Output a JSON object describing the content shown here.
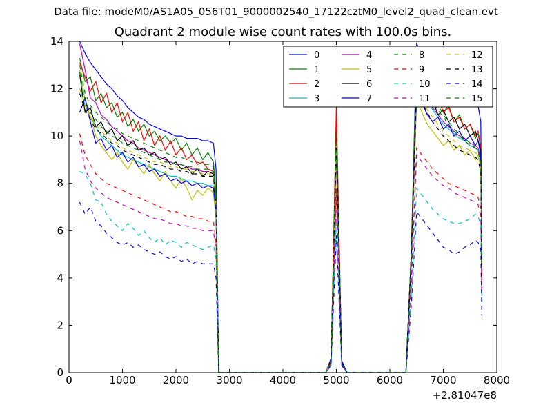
{
  "figure": {
    "suptitle": "Data file: modeM0/AS1A05_056T01_9000002540_17122cztM0_level2_quad_clean.evt"
  },
  "chart_data": {
    "type": "line",
    "title": "Quadrant 2 module wise count rates with 100.0s bins.",
    "xlabel": "",
    "ylabel": "",
    "xlim": [
      0,
      8000
    ],
    "ylim": [
      0,
      14
    ],
    "x_offset_label": "+2.81047e8",
    "xticks": [
      0,
      1000,
      2000,
      3000,
      4000,
      5000,
      6000,
      7000,
      8000
    ],
    "yticks": [
      0,
      2,
      4,
      6,
      8,
      10,
      12,
      14
    ],
    "legend_position": "top-right",
    "legend_columns": 4,
    "x": [
      200,
      300,
      400,
      500,
      600,
      700,
      800,
      900,
      1000,
      1100,
      1200,
      1300,
      1400,
      1500,
      1600,
      1700,
      1800,
      1900,
      2000,
      2100,
      2200,
      2300,
      2400,
      2500,
      2600,
      2700,
      2750,
      2800,
      4800,
      4900,
      5000,
      5100,
      5200,
      6300,
      6400,
      6500,
      6600,
      6700,
      6800,
      6900,
      7000,
      7100,
      7200,
      7300,
      7400,
      7500,
      7600,
      7650,
      7700,
      7720
    ],
    "series": [
      {
        "name": "0",
        "color": "#0000ff",
        "dashed": false,
        "values": [
          14.0,
          13.5,
          13.1,
          12.8,
          12.5,
          12.2,
          12.0,
          11.7,
          11.5,
          11.2,
          11.0,
          10.8,
          10.7,
          10.5,
          10.4,
          10.3,
          10.2,
          10.1,
          10.0,
          10.0,
          9.9,
          9.9,
          9.9,
          9.8,
          9.8,
          9.7,
          8.6,
          0,
          0,
          0.6,
          10.0,
          0.5,
          0,
          0,
          5.0,
          13.9,
          13.5,
          12.8,
          12.4,
          12.2,
          12.0,
          11.8,
          11.7,
          11.6,
          11.5,
          11.4,
          11.4,
          11.3,
          10.6,
          5.5
        ]
      },
      {
        "name": "1",
        "color": "#008000",
        "dashed": false,
        "values": [
          13.3,
          12.3,
          12.5,
          11.5,
          11.8,
          11.2,
          11.4,
          10.8,
          11.0,
          10.4,
          10.7,
          10.2,
          10.5,
          10.0,
          10.2,
          9.8,
          10.0,
          9.7,
          9.9,
          9.4,
          9.7,
          9.2,
          9.5,
          9.0,
          9.3,
          8.9,
          7.5,
          0,
          0,
          0.5,
          10.5,
          0.4,
          0,
          0,
          5.0,
          13.2,
          12.8,
          12.2,
          11.9,
          11.6,
          11.0,
          11.3,
          10.6,
          10.9,
          10.3,
          10.5,
          9.9,
          10.1,
          9.5,
          5.5
        ]
      },
      {
        "name": "2",
        "color": "#ff0000",
        "dashed": false,
        "values": [
          13.1,
          12.5,
          11.9,
          12.3,
          11.4,
          11.8,
          11.0,
          11.4,
          10.6,
          11.0,
          10.2,
          10.6,
          9.8,
          10.3,
          9.6,
          10.0,
          9.4,
          9.8,
          9.2,
          9.5,
          9.0,
          9.2,
          8.8,
          8.9,
          8.6,
          8.5,
          7.2,
          0,
          0,
          0.5,
          11.3,
          0.4,
          0,
          0,
          5.0,
          13.0,
          12.6,
          12.0,
          11.5,
          11.7,
          11.0,
          11.2,
          10.6,
          10.8,
          10.3,
          10.5,
          10.0,
          10.2,
          9.5,
          4.0
        ]
      },
      {
        "name": "3",
        "color": "#00bfbf",
        "dashed": false,
        "values": [
          12.0,
          11.3,
          10.8,
          10.4,
          10.0,
          9.8,
          9.6,
          9.4,
          9.2,
          9.1,
          9.0,
          8.9,
          8.8,
          8.7,
          8.6,
          8.5,
          8.4,
          8.3,
          8.3,
          8.2,
          8.1,
          8.1,
          8.0,
          8.0,
          7.9,
          7.9,
          6.8,
          0,
          0,
          0.4,
          9.2,
          0.4,
          0,
          0,
          4.5,
          12.5,
          12.0,
          11.5,
          11.1,
          10.8,
          10.5,
          10.3,
          10.1,
          9.9,
          9.8,
          9.6,
          9.5,
          9.4,
          8.8,
          4.5
        ]
      },
      {
        "name": "4",
        "color": "#bf00bf",
        "dashed": false,
        "values": [
          13.9,
          12.8,
          11.6,
          11.4,
          10.9,
          10.7,
          10.4,
          10.2,
          10.0,
          9.8,
          9.7,
          9.5,
          9.4,
          9.3,
          9.2,
          9.1,
          9.0,
          8.9,
          8.8,
          8.8,
          8.7,
          8.6,
          8.6,
          8.5,
          8.5,
          8.4,
          7.0,
          0,
          0,
          0.5,
          10.0,
          0.4,
          0,
          0,
          5.0,
          12.6,
          12.1,
          11.6,
          11.2,
          10.9,
          10.6,
          10.4,
          10.2,
          10.0,
          9.9,
          9.7,
          9.6,
          9.5,
          9.0,
          5.0
        ]
      },
      {
        "name": "5",
        "color": "#bfbf00",
        "dashed": false,
        "values": [
          12.8,
          11.5,
          10.8,
          10.0,
          9.6,
          9.3,
          9.0,
          9.3,
          8.9,
          8.6,
          9.0,
          8.7,
          8.4,
          8.8,
          8.4,
          8.1,
          8.5,
          8.1,
          7.8,
          8.2,
          7.8,
          7.3,
          7.7,
          7.5,
          7.8,
          7.6,
          6.5,
          0,
          0,
          0.4,
          8.8,
          0.3,
          0,
          0,
          4.5,
          11.5,
          11.0,
          10.5,
          10.2,
          9.9,
          9.6,
          9.8,
          9.4,
          9.6,
          9.2,
          9.4,
          9.0,
          9.2,
          8.6,
          4.5
        ]
      },
      {
        "name": "6",
        "color": "#000000",
        "dashed": false,
        "values": [
          12.6,
          11.0,
          11.2,
          10.4,
          10.6,
          10.1,
          10.3,
          9.8,
          10.0,
          9.6,
          9.8,
          9.4,
          9.5,
          9.2,
          9.3,
          9.0,
          9.1,
          8.8,
          8.9,
          8.6,
          8.7,
          8.4,
          8.6,
          8.3,
          8.5,
          8.4,
          7.0,
          0,
          0,
          0.5,
          10.2,
          0.4,
          0,
          0,
          5.0,
          12.2,
          11.8,
          11.3,
          11.5,
          10.9,
          11.1,
          10.6,
          10.8,
          10.3,
          10.5,
          10.0,
          10.2,
          9.8,
          9.4,
          5.0
        ]
      },
      {
        "name": "7",
        "color": "#0000ff",
        "dashed": false,
        "values": [
          11.0,
          11.6,
          10.6,
          9.7,
          9.9,
          9.4,
          9.6,
          9.1,
          9.3,
          8.9,
          9.1,
          8.7,
          8.8,
          8.5,
          8.6,
          8.3,
          8.4,
          8.1,
          8.2,
          8.0,
          8.1,
          7.9,
          8.0,
          7.8,
          7.9,
          7.8,
          6.8,
          0,
          0,
          0.4,
          9.5,
          0.4,
          0,
          0,
          4.8,
          11.8,
          11.4,
          10.9,
          10.6,
          10.8,
          10.3,
          10.5,
          10.0,
          10.2,
          9.8,
          10.0,
          9.6,
          9.8,
          9.2,
          4.8
        ]
      },
      {
        "name": "8",
        "color": "#008000",
        "dashed": true,
        "values": [
          13.0,
          11.8,
          11.3,
          11.0,
          10.8,
          10.6,
          10.4,
          10.3,
          10.1,
          10.0,
          9.9,
          9.8,
          9.7,
          9.6,
          9.5,
          9.4,
          9.3,
          9.2,
          9.1,
          9.1,
          9.0,
          8.9,
          8.9,
          8.8,
          8.8,
          8.7,
          7.3,
          0,
          0,
          0.5,
          10.3,
          0.4,
          0,
          0,
          5.0,
          13.3,
          12.7,
          12.1,
          11.6,
          11.3,
          10.9,
          10.6,
          10.3,
          10.1,
          9.9,
          9.7,
          9.5,
          9.4,
          8.8,
          4.8
        ]
      },
      {
        "name": "9",
        "color": "#ff0000",
        "dashed": true,
        "values": [
          10.1,
          9.2,
          8.8,
          8.4,
          8.2,
          8.0,
          7.9,
          7.8,
          7.7,
          7.6,
          7.5,
          7.4,
          7.3,
          7.2,
          7.1,
          7.0,
          6.9,
          6.8,
          6.8,
          6.7,
          6.6,
          6.6,
          6.5,
          6.5,
          6.4,
          6.4,
          5.5,
          0,
          0,
          0.4,
          7.8,
          0.3,
          0,
          0,
          3.8,
          9.5,
          9.2,
          8.9,
          8.6,
          8.4,
          8.2,
          8.0,
          7.9,
          7.8,
          7.7,
          7.6,
          7.5,
          7.4,
          6.9,
          3.5
        ]
      },
      {
        "name": "10",
        "color": "#00bfbf",
        "dashed": true,
        "values": [
          8.5,
          8.4,
          8.0,
          7.3,
          7.2,
          6.7,
          6.4,
          6.2,
          6.0,
          6.3,
          6.1,
          5.8,
          6.0,
          5.7,
          5.5,
          5.7,
          5.4,
          5.6,
          5.5,
          5.3,
          5.5,
          5.4,
          5.3,
          5.2,
          5.3,
          5.4,
          4.8,
          0,
          0,
          0.3,
          6.5,
          0.3,
          0,
          0,
          3.2,
          7.8,
          7.5,
          7.2,
          6.9,
          6.7,
          6.5,
          6.4,
          6.3,
          6.3,
          6.4,
          6.5,
          6.7,
          6.6,
          6.2,
          3.0
        ]
      },
      {
        "name": "11",
        "color": "#bf00bf",
        "dashed": true,
        "values": [
          9.8,
          8.6,
          8.1,
          7.8,
          7.6,
          7.4,
          7.3,
          7.2,
          7.1,
          7.0,
          6.9,
          6.8,
          6.7,
          6.6,
          6.5,
          6.5,
          6.4,
          6.3,
          6.3,
          6.2,
          6.2,
          6.1,
          6.1,
          6.0,
          6.0,
          6.0,
          5.2,
          0,
          0,
          0.4,
          7.5,
          0.3,
          0,
          0,
          3.7,
          9.2,
          8.9,
          8.6,
          8.3,
          8.1,
          7.9,
          7.8,
          7.6,
          7.5,
          7.4,
          7.3,
          7.2,
          7.1,
          6.6,
          3.4
        ]
      },
      {
        "name": "12",
        "color": "#bfbf00",
        "dashed": true,
        "values": [
          12.0,
          11.3,
          10.8,
          10.5,
          10.2,
          10.0,
          9.8,
          9.7,
          9.5,
          9.4,
          9.3,
          9.2,
          9.1,
          9.0,
          8.9,
          8.9,
          8.8,
          8.7,
          8.7,
          8.6,
          8.6,
          8.5,
          8.5,
          8.4,
          8.4,
          8.4,
          7.0,
          0,
          0,
          0.5,
          9.8,
          0.4,
          0,
          0,
          4.8,
          12.0,
          11.6,
          11.1,
          10.8,
          10.5,
          10.2,
          10.0,
          9.8,
          9.6,
          9.5,
          9.4,
          9.3,
          9.2,
          8.6,
          4.5
        ]
      },
      {
        "name": "13",
        "color": "#000000",
        "dashed": true,
        "values": [
          11.8,
          11.1,
          10.7,
          10.3,
          10.1,
          9.9,
          9.7,
          9.6,
          9.4,
          9.3,
          9.2,
          9.1,
          9.0,
          8.9,
          8.8,
          8.8,
          8.7,
          8.6,
          8.6,
          8.5,
          8.5,
          8.4,
          8.4,
          8.3,
          8.3,
          8.3,
          7.0,
          0,
          0,
          0.5,
          9.6,
          0.4,
          0,
          0,
          4.7,
          12.0,
          11.4,
          11.0,
          10.6,
          10.3,
          10.0,
          9.8,
          9.6,
          9.4,
          9.3,
          9.2,
          9.1,
          9.0,
          8.5,
          4.4
        ]
      },
      {
        "name": "14",
        "color": "#0000ff",
        "dashed": true,
        "values": [
          7.2,
          6.7,
          7.0,
          6.4,
          6.2,
          5.9,
          5.7,
          5.5,
          5.4,
          5.5,
          5.3,
          5.4,
          5.2,
          5.1,
          5.0,
          5.1,
          4.9,
          4.8,
          4.9,
          4.7,
          4.8,
          4.6,
          4.7,
          4.6,
          4.6,
          4.6,
          4.0,
          0,
          0,
          0.3,
          5.8,
          0.3,
          0,
          0,
          2.8,
          6.8,
          6.5,
          6.2,
          5.9,
          5.6,
          5.3,
          5.2,
          5.0,
          5.1,
          5.3,
          5.4,
          5.6,
          5.5,
          5.2,
          2.4
        ]
      },
      {
        "name": "15",
        "color": "#008000",
        "dashed": true,
        "values": [
          12.7,
          11.5,
          11.0,
          10.7,
          10.4,
          10.2,
          10.0,
          9.9,
          9.7,
          9.6,
          9.5,
          9.4,
          9.3,
          9.2,
          9.1,
          9.0,
          8.9,
          8.9,
          8.8,
          8.8,
          8.7,
          8.7,
          8.6,
          8.6,
          8.6,
          8.5,
          7.2,
          0,
          0,
          0.5,
          10.2,
          0.4,
          0,
          0,
          5.0,
          12.9,
          12.4,
          11.8,
          11.4,
          11.1,
          10.8,
          10.5,
          10.2,
          10.0,
          9.8,
          9.6,
          9.5,
          9.4,
          8.8,
          4.7
        ]
      }
    ]
  }
}
